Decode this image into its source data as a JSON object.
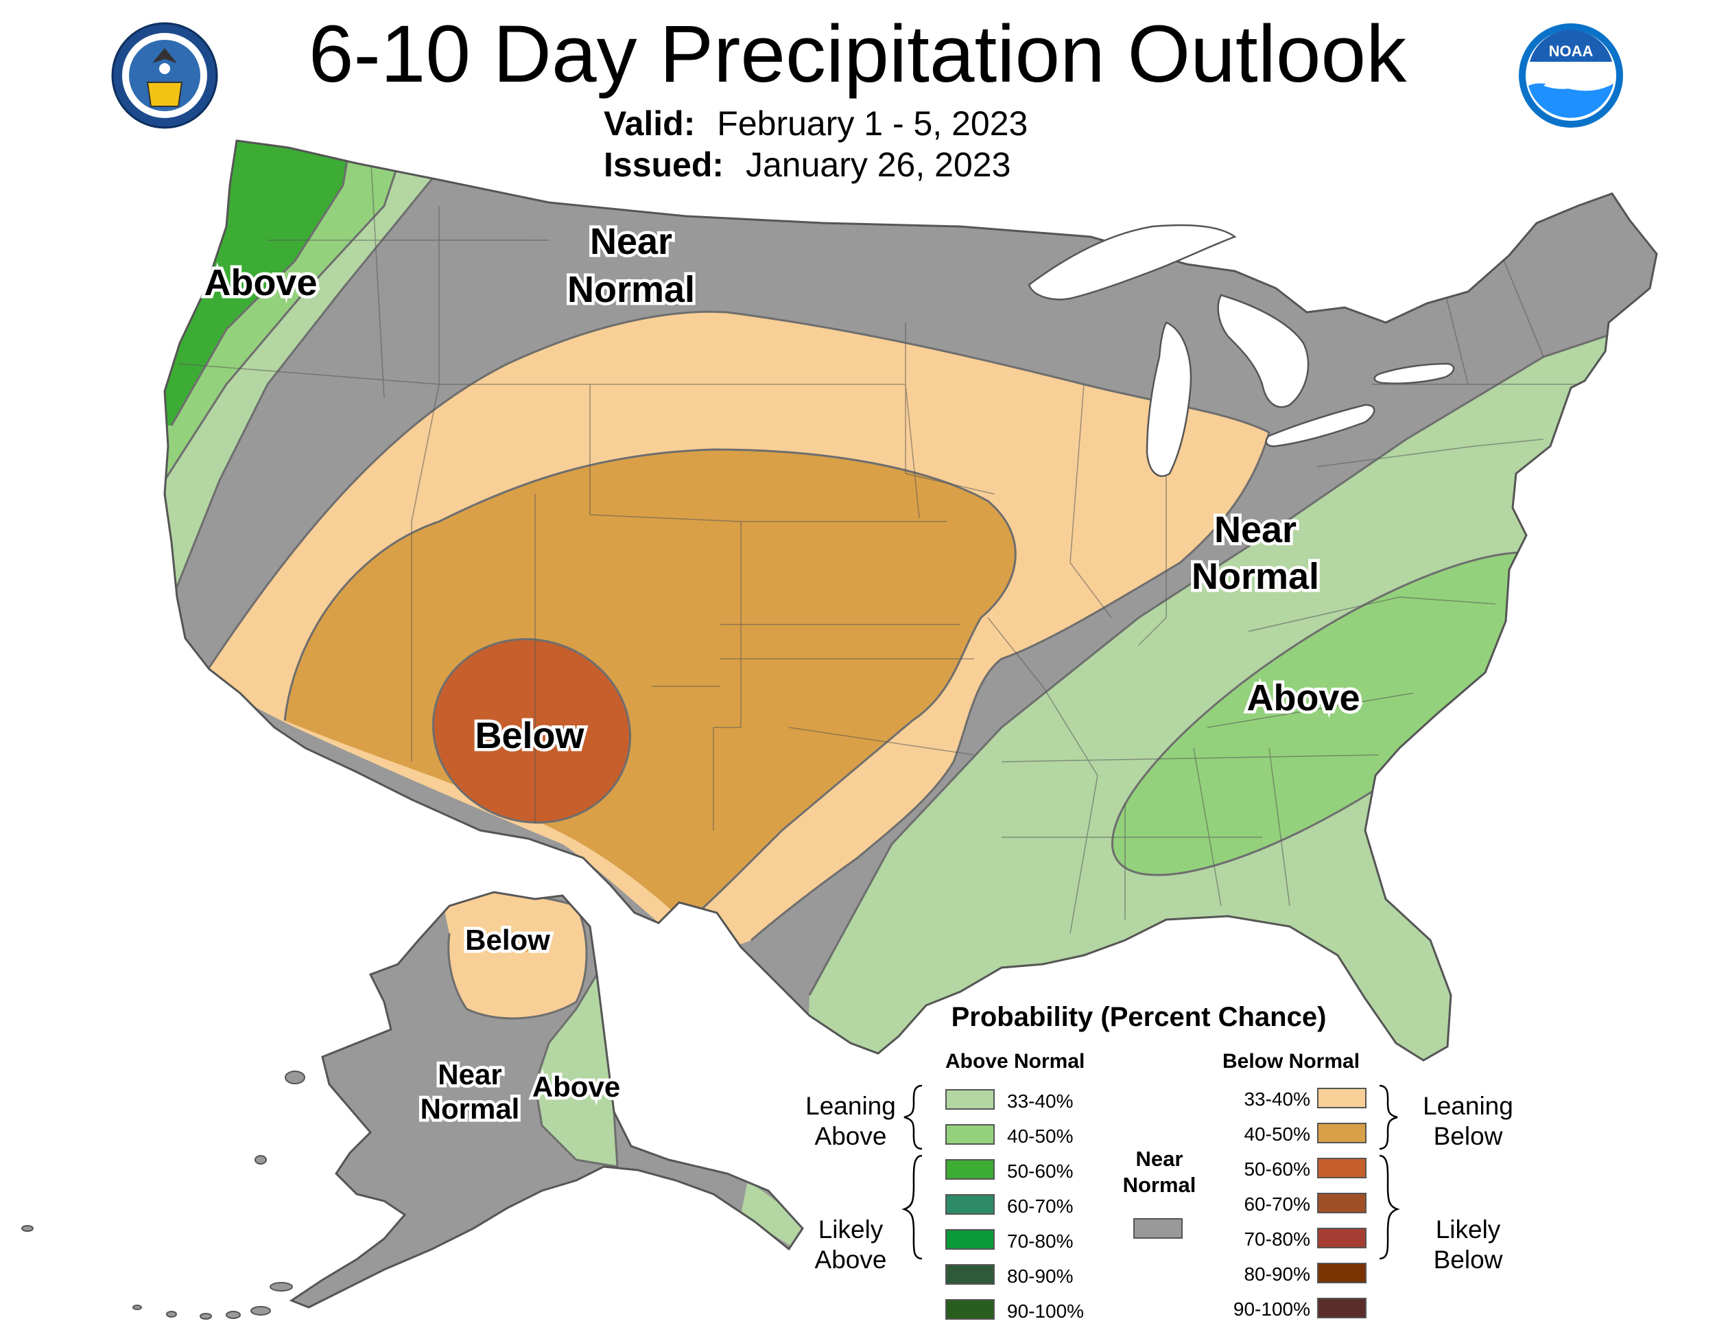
{
  "title": "6-10 Day Precipitation Outlook",
  "valid_label": "Valid:",
  "valid_value": "February 1 - 5, 2023",
  "issued_label": "Issued:",
  "issued_value": "January 26, 2023",
  "logos": {
    "left": {
      "name": "department-of-commerce-seal",
      "text": "DEPARTMENT OF COMMERCE · UNITED STATES OF AMERICA"
    },
    "right": {
      "name": "noaa-logo",
      "text": "NOAA"
    }
  },
  "map_labels": {
    "above_west": "Above",
    "near_normal_north_1": "Near",
    "near_normal_north_2": "Normal",
    "near_normal_east_1": "Near",
    "near_normal_east_2": "Normal",
    "above_southeast": "Above",
    "below_southwest": "Below",
    "alaska_below": "Below",
    "alaska_near_1": "Near",
    "alaska_near_2": "Normal",
    "alaska_above": "Above"
  },
  "legend": {
    "title": "Probability (Percent Chance)",
    "above_header": "Above Normal",
    "below_header": "Below Normal",
    "leaning_above": [
      "Leaning",
      "Above"
    ],
    "likely_above": [
      "Likely",
      "Above"
    ],
    "leaning_below": [
      "Leaning",
      "Below"
    ],
    "likely_below": [
      "Likely",
      "Below"
    ],
    "near_normal": [
      "Near",
      "Normal"
    ],
    "near_normal_color": "#999999",
    "above": [
      {
        "label": "33-40%",
        "color": "#b3d6a3"
      },
      {
        "label": "40-50%",
        "color": "#94d17c"
      },
      {
        "label": "50-60%",
        "color": "#3cac34"
      },
      {
        "label": "60-70%",
        "color": "#2e8b68"
      },
      {
        "label": "70-80%",
        "color": "#0a9a3a"
      },
      {
        "label": "80-90%",
        "color": "#2f5a38"
      },
      {
        "label": "90-100%",
        "color": "#285f1f"
      }
    ],
    "below": [
      {
        "label": "33-40%",
        "color": "#f8cf97"
      },
      {
        "label": "40-50%",
        "color": "#d9a048"
      },
      {
        "label": "50-60%",
        "color": "#c65f2c"
      },
      {
        "label": "60-70%",
        "color": "#a14f27"
      },
      {
        "label": "70-80%",
        "color": "#a63d32"
      },
      {
        "label": "80-90%",
        "color": "#7a3301"
      },
      {
        "label": "90-100%",
        "color": "#5b2d29"
      }
    ]
  }
}
